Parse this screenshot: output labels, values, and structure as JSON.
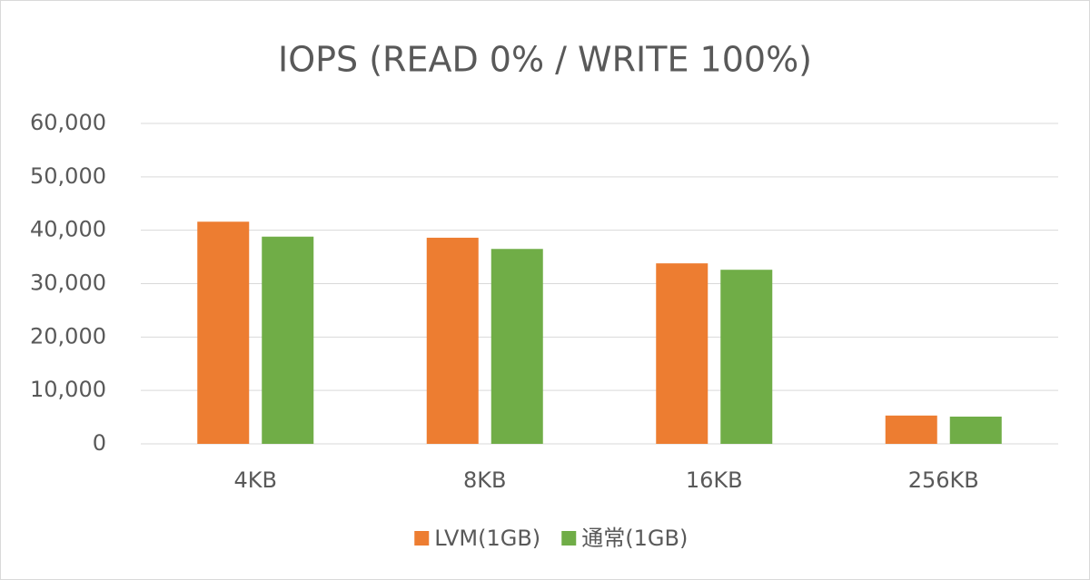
{
  "chart_data": {
    "type": "bar",
    "title": "IOPS (READ 0% / WRITE 100%)",
    "categories": [
      "4KB",
      "8KB",
      "16KB",
      "256KB"
    ],
    "series": [
      {
        "name": "LVM(1GB)",
        "color": "#ed7d31",
        "values": [
          41600,
          38600,
          33800,
          5300
        ]
      },
      {
        "name": "通常(1GB)",
        "color": "#70ad47",
        "values": [
          38800,
          36500,
          32600,
          5100
        ]
      }
    ],
    "ylim": [
      0,
      60000
    ],
    "yticks": [
      0,
      {
        "value": 10000,
        "label": "10,000"
      },
      {
        "value": 20000,
        "label": "20,000"
      },
      {
        "value": 30000,
        "label": "30,000"
      },
      {
        "value": 40000,
        "label": "40,000"
      },
      {
        "value": 50000,
        "label": "50,000"
      },
      {
        "value": 60000,
        "label": "60,000"
      }
    ],
    "grid": true,
    "legend": "bottom"
  }
}
